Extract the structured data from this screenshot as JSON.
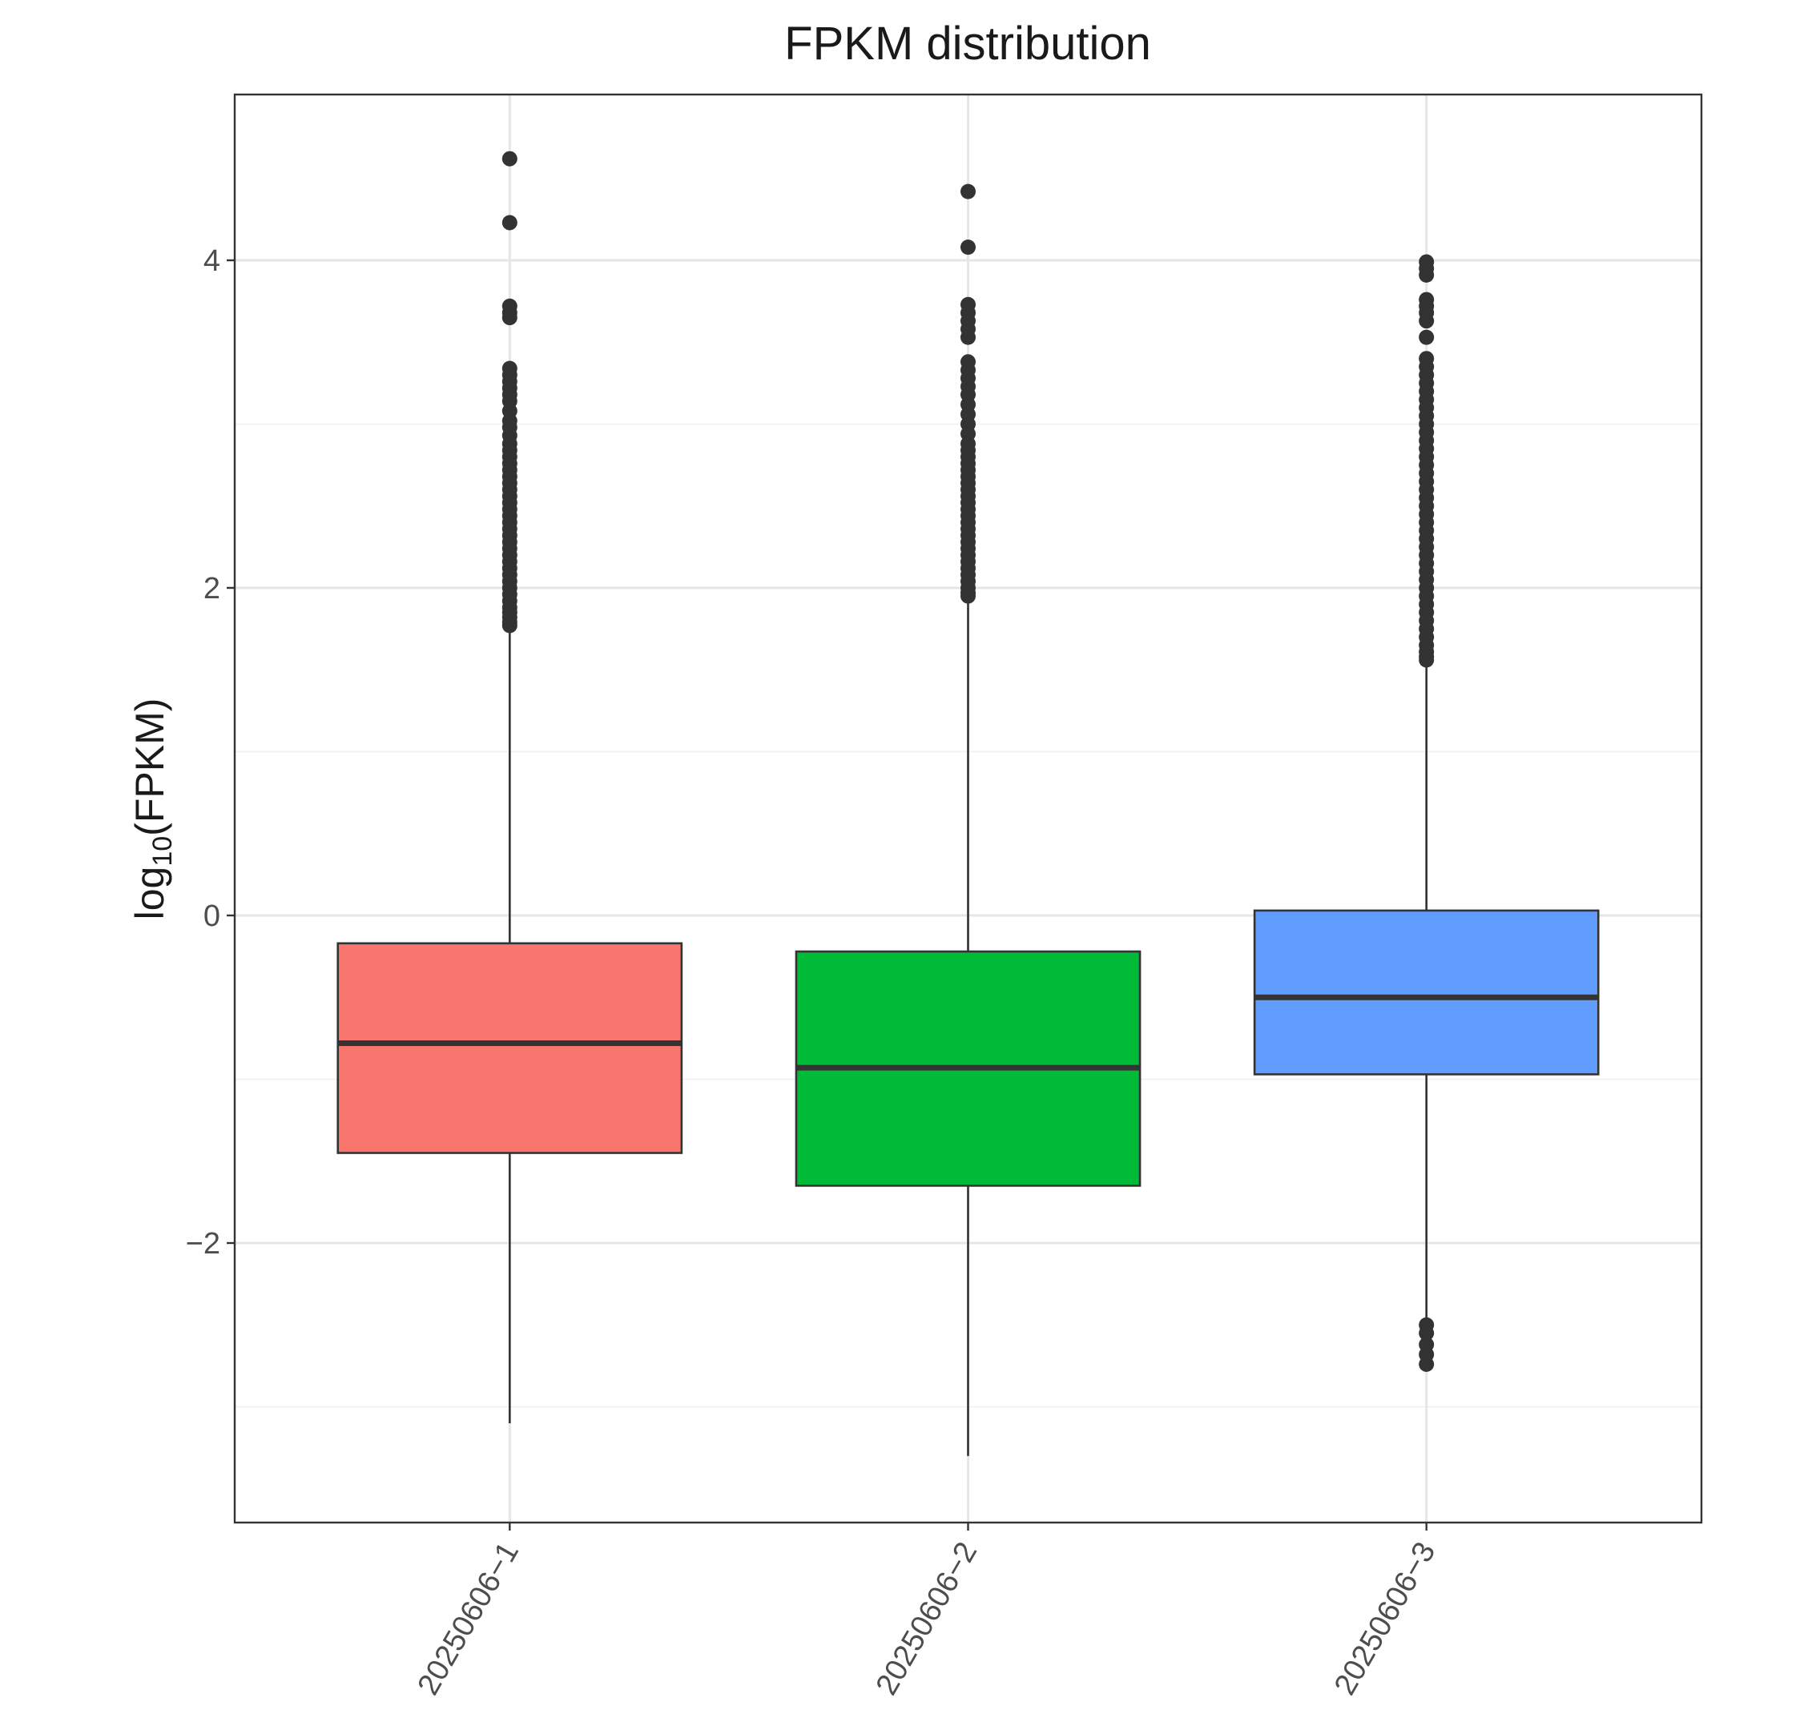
{
  "chart_data": {
    "type": "box",
    "title": "FPKM distribution",
    "xlabel": "",
    "ylabel": {
      "prefix": "log",
      "subscript": "10",
      "suffix": "(FPKM)"
    },
    "ylim": [
      -3.7,
      5.0
    ],
    "yticks": [
      -2,
      0,
      2,
      4
    ],
    "ytick_labels": [
      "−2",
      "0",
      "2",
      "4"
    ],
    "y_minor_gridlines": [
      -3,
      -1,
      1,
      3
    ],
    "grid": true,
    "legend": "none",
    "categories": [
      "20250606−1",
      "20250606−2",
      "20250606−3"
    ],
    "boxes": [
      {
        "name": "20250606−1",
        "color": "#F8766D",
        "whisker_low": -3.1,
        "q1": -1.45,
        "median": -0.78,
        "q3": -0.17,
        "whisker_high": 1.75,
        "outliers": [
          4.62,
          4.23,
          3.72,
          3.68,
          3.65,
          3.34,
          3.3,
          3.26,
          3.22,
          3.18,
          3.14,
          3.08,
          3.02,
          2.98,
          2.93,
          2.88,
          2.84,
          2.8,
          2.76,
          2.72,
          2.68,
          2.64,
          2.6,
          2.56,
          2.52,
          2.48,
          2.44,
          2.4,
          2.36,
          2.32,
          2.28,
          2.24,
          2.2,
          2.16,
          2.12,
          2.08,
          2.04,
          2.0,
          1.96,
          1.92,
          1.88,
          1.85,
          1.82,
          1.79,
          1.77
        ]
      },
      {
        "name": "20250606−2",
        "color": "#00BA38",
        "whisker_low": -3.3,
        "q1": -1.65,
        "median": -0.93,
        "q3": -0.22,
        "whisker_high": 1.93,
        "outliers": [
          4.42,
          4.08,
          3.73,
          3.68,
          3.63,
          3.58,
          3.53,
          3.38,
          3.33,
          3.28,
          3.23,
          3.18,
          3.12,
          3.06,
          3.0,
          2.94,
          2.88,
          2.84,
          2.8,
          2.76,
          2.72,
          2.68,
          2.64,
          2.6,
          2.56,
          2.52,
          2.48,
          2.44,
          2.4,
          2.36,
          2.32,
          2.28,
          2.24,
          2.2,
          2.16,
          2.12,
          2.08,
          2.04,
          2.0,
          1.97,
          1.95
        ]
      },
      {
        "name": "20250606−3",
        "color": "#619CFF",
        "whisker_low": -2.5,
        "q1": -0.97,
        "median": -0.5,
        "q3": 0.03,
        "whisker_high": 1.55,
        "outliers": [
          3.99,
          3.95,
          3.91,
          3.76,
          3.72,
          3.68,
          3.63,
          3.53,
          3.4,
          3.35,
          3.3,
          3.25,
          3.2,
          3.15,
          3.1,
          3.05,
          3.0,
          2.95,
          2.9,
          2.85,
          2.8,
          2.75,
          2.7,
          2.65,
          2.6,
          2.55,
          2.5,
          2.45,
          2.4,
          2.35,
          2.3,
          2.25,
          2.2,
          2.15,
          2.1,
          2.05,
          2.0,
          1.95,
          1.9,
          1.85,
          1.8,
          1.75,
          1.7,
          1.65,
          1.61,
          1.58,
          1.56,
          -2.5,
          -2.55,
          -2.62,
          -2.68,
          -2.74
        ]
      }
    ]
  }
}
